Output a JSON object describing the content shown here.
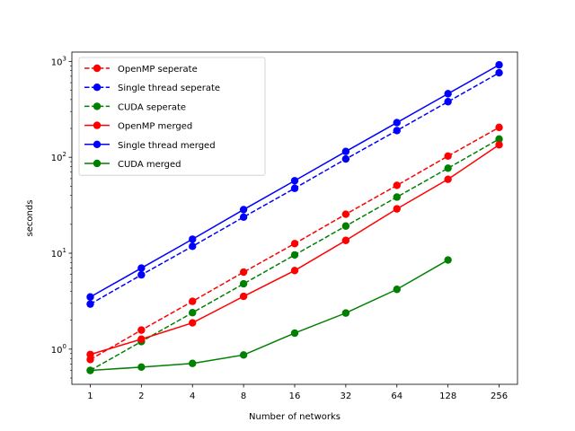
{
  "chart_data": {
    "type": "line",
    "xlabel": "Number of networks",
    "ylabel": "seconds",
    "xscale": "log2",
    "yscale": "log10",
    "x": [
      1,
      2,
      4,
      8,
      16,
      32,
      64,
      128,
      256
    ],
    "x_tick_labels": [
      "1",
      "2",
      "4",
      "8",
      "16",
      "32",
      "64",
      "128",
      "256"
    ],
    "ylim": [
      0.43,
      1250
    ],
    "y_ticks": [
      {
        "value": 1,
        "base": "10",
        "exp": "0"
      },
      {
        "value": 10,
        "base": "10",
        "exp": "1"
      },
      {
        "value": 100,
        "base": "10",
        "exp": "2"
      },
      {
        "value": 1000,
        "base": "10",
        "exp": "3"
      }
    ],
    "legend_position": "upper-left",
    "grid": false,
    "series": [
      {
        "name": "OpenMP seperate",
        "color": "#ff0000",
        "dashed": true,
        "values": [
          0.78,
          1.58,
          3.15,
          6.35,
          12.6,
          25.5,
          51,
          103,
          205
        ]
      },
      {
        "name": "Single thread seperate",
        "color": "#0000ff",
        "dashed": true,
        "values": [
          2.95,
          5.95,
          11.8,
          23.8,
          47.5,
          96,
          190,
          380,
          760
        ]
      },
      {
        "name": "CUDA seperate",
        "color": "#008000",
        "dashed": true,
        "values": [
          0.6,
          1.2,
          2.4,
          4.8,
          9.6,
          19.2,
          38.5,
          77,
          155
        ]
      },
      {
        "name": "OpenMP merged",
        "color": "#ff0000",
        "dashed": false,
        "values": [
          0.88,
          1.27,
          1.88,
          3.55,
          6.6,
          13.6,
          29,
          59,
          135
        ]
      },
      {
        "name": "Single thread merged",
        "color": "#0000ff",
        "dashed": false,
        "values": [
          3.5,
          7.0,
          14.0,
          28.5,
          57,
          115,
          230,
          460,
          920
        ]
      },
      {
        "name": "CUDA merged",
        "color": "#008000",
        "dashed": false,
        "values": [
          0.6,
          0.65,
          0.71,
          0.87,
          1.47,
          2.38,
          4.2,
          8.5,
          null
        ]
      }
    ]
  }
}
